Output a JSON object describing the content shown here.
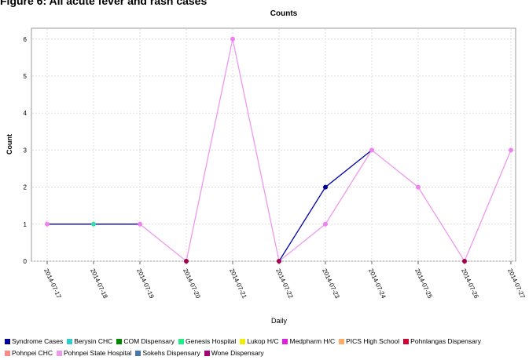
{
  "figure_heading": "Figure 6: All acute fever and rash cases",
  "chart_data": {
    "type": "line",
    "title": "Counts",
    "xlabel": "Daily",
    "ylabel": "Count",
    "categories": [
      "2014-07-17",
      "2014-07-18",
      "2014-07-19",
      "2014-07-20",
      "2014-07-21",
      "2014-07-22",
      "2014-07-23",
      "2014-07-24",
      "2014-07-25",
      "2014-07-26",
      "2014-07-27"
    ],
    "ylim": [
      0,
      6.5
    ],
    "yticks": [
      "0",
      "1",
      "2",
      "3",
      "4",
      "5",
      "6"
    ],
    "grid": true,
    "series": [
      {
        "name": "Syndrome Cases",
        "color": "#0000aa",
        "values": [
          1,
          1,
          1,
          null,
          null,
          0,
          2,
          3,
          null,
          null,
          null
        ]
      },
      {
        "name": "Pohnpei State Hospital",
        "color": "#ee99ee",
        "values": [
          null,
          null,
          1,
          0,
          6,
          0,
          1,
          3,
          2,
          0,
          3
        ]
      }
    ],
    "markers": [
      {
        "x_index": 0,
        "value": 1,
        "color": "#ee82ee"
      },
      {
        "x_index": 1,
        "value": 1,
        "color": "#33ddaa"
      },
      {
        "x_index": 2,
        "value": 1,
        "color": "#ee82ee"
      },
      {
        "x_index": 3,
        "value": 0,
        "color": "#a0004a"
      },
      {
        "x_index": 4,
        "value": 6,
        "color": "#ee82ee"
      },
      {
        "x_index": 5,
        "value": 0,
        "color": "#a0004a"
      },
      {
        "x_index": 6,
        "value": 2,
        "color": "#000099"
      },
      {
        "x_index": 6,
        "value": 1,
        "color": "#ee82ee"
      },
      {
        "x_index": 7,
        "value": 3,
        "color": "#ee82ee"
      },
      {
        "x_index": 8,
        "value": 2,
        "color": "#ee82ee"
      },
      {
        "x_index": 9,
        "value": 0,
        "color": "#a0004a"
      },
      {
        "x_index": 10,
        "value": 3,
        "color": "#ee82ee"
      }
    ],
    "legend_position": "bottom",
    "legend_rows": [
      [
        {
          "label": "Syndrome Cases",
          "color": "#000099"
        },
        {
          "label": "Berysin CHC",
          "color": "#33cccc"
        },
        {
          "label": "COM Dispensary",
          "color": "#008800"
        },
        {
          "label": "Genesis Hospital",
          "color": "#22ee88"
        },
        {
          "label": "Lukop H/C",
          "color": "#eeee00"
        },
        {
          "label": "Medpharm H/C",
          "color": "#dd22dd"
        },
        {
          "label": "PICS High School",
          "color": "#ffaa66"
        },
        {
          "label": "Pohnlangas Dispensary",
          "color": "#cc0033"
        }
      ],
      [
        {
          "label": "Pohnpei CHC",
          "color": "#ff8888"
        },
        {
          "label": "Pohnpei State Hospital",
          "color": "#ee99ee"
        },
        {
          "label": "Sokehs Dispensary",
          "color": "#4477aa"
        },
        {
          "label": "Wone Dispensary",
          "color": "#aa0077"
        }
      ]
    ]
  }
}
